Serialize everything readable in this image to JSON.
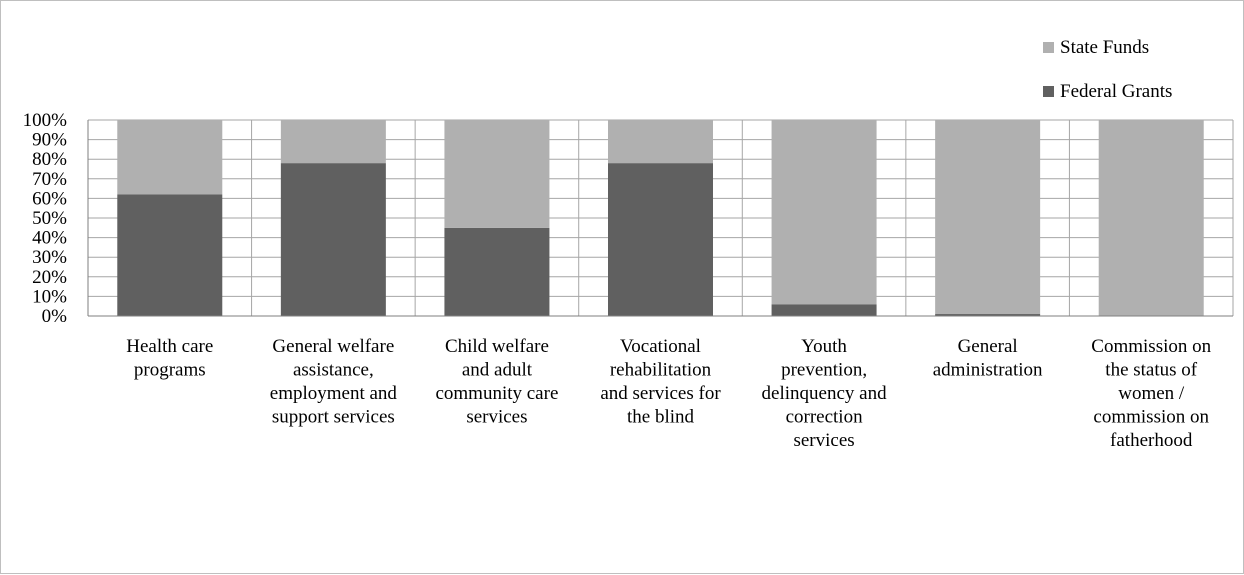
{
  "chart_data": {
    "type": "bar",
    "stacked": true,
    "percent_stacked": true,
    "categories": [
      [
        "Health care",
        "programs"
      ],
      [
        "General welfare",
        "assistance,",
        "employment and",
        "support services"
      ],
      [
        "Child welfare",
        "and adult",
        "community care",
        "services"
      ],
      [
        "Vocational",
        "rehabilitation",
        "and services for",
        "the blind"
      ],
      [
        "Youth",
        "prevention,",
        "delinquency and",
        "correction",
        "services"
      ],
      [
        "General",
        "administration"
      ],
      [
        "Commission on",
        "the status of",
        "women /",
        "commission on",
        "fatherhood"
      ]
    ],
    "series": [
      {
        "name": "Federal Grants",
        "color": "#606060",
        "values": [
          62,
          78,
          45,
          78,
          6,
          1,
          0
        ]
      },
      {
        "name": "State Funds",
        "color": "#b0b0b0",
        "values": [
          38,
          22,
          55,
          22,
          94,
          99,
          100
        ]
      }
    ],
    "ylim": [
      0,
      100
    ],
    "y_ticks": [
      "0%",
      "10%",
      "20%",
      "30%",
      "40%",
      "50%",
      "60%",
      "70%",
      "80%",
      "90%",
      "100%"
    ],
    "grid": true,
    "legend_position": "top-right",
    "legend_order": [
      "State Funds",
      "Federal Grants"
    ],
    "title": "",
    "xlabel": "",
    "ylabel": ""
  }
}
